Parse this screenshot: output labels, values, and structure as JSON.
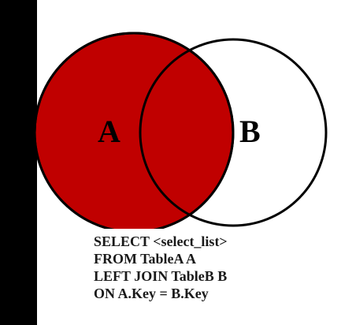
{
  "venn": {
    "left_label": "A",
    "right_label": "B",
    "fill_color": "#c00000",
    "outline_color": "#000000"
  },
  "query": {
    "lines": [
      "SELECT <select_list>",
      "FROM TableA A",
      "LEFT JOIN TableB B",
      "ON A.Key = B.Key"
    ]
  }
}
